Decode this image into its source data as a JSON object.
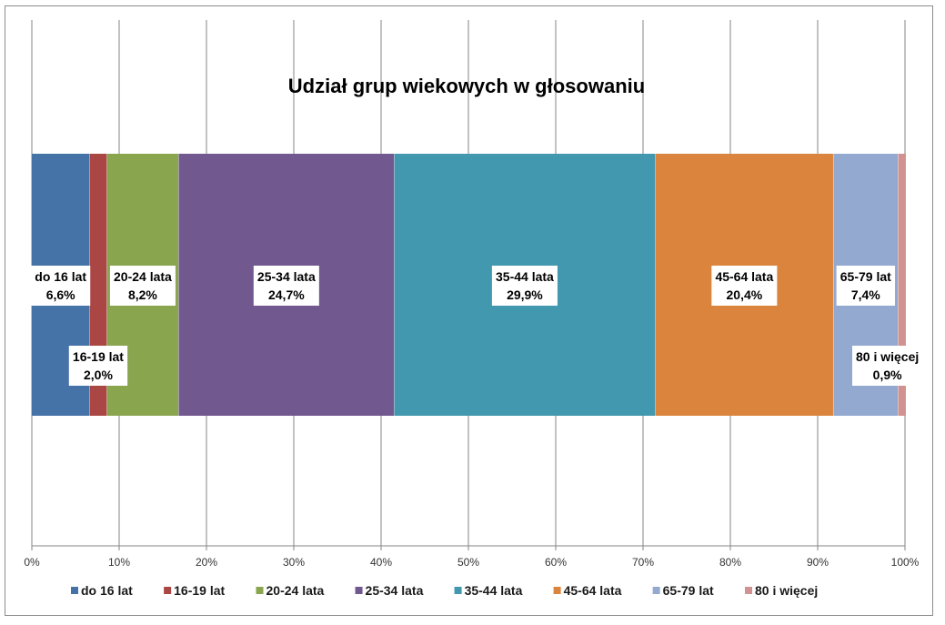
{
  "chart_data": {
    "type": "bar",
    "orientation": "horizontal-stacked-100",
    "title": "Udział grup wiekowych w głosowaniu",
    "xlim": [
      0,
      100
    ],
    "x_ticks": [
      "0%",
      "10%",
      "20%",
      "30%",
      "40%",
      "50%",
      "60%",
      "70%",
      "80%",
      "90%",
      "100%"
    ],
    "grid": "vertical",
    "legend_position": "bottom",
    "series": [
      {
        "name": "do 16 lat",
        "value": 6.6,
        "label": "6,6%",
        "color": "#4572a7"
      },
      {
        "name": "16-19 lat",
        "value": 2.0,
        "label": "2,0%",
        "color": "#aa4643"
      },
      {
        "name": "20-24 lata",
        "value": 8.2,
        "label": "8,2%",
        "color": "#89a54e"
      },
      {
        "name": "25-34 lata",
        "value": 24.7,
        "label": "24,7%",
        "color": "#71588f"
      },
      {
        "name": "35-44 lata",
        "value": 29.9,
        "label": "29,9%",
        "color": "#4198af"
      },
      {
        "name": "45-64 lata",
        "value": 20.4,
        "label": "20,4%",
        "color": "#db843d"
      },
      {
        "name": "65-79 lat",
        "value": 7.4,
        "label": "7,4%",
        "color": "#93a9cf"
      },
      {
        "name": "80 i więcej",
        "value": 0.9,
        "label": "0,9%",
        "color": "#d19392"
      }
    ]
  }
}
